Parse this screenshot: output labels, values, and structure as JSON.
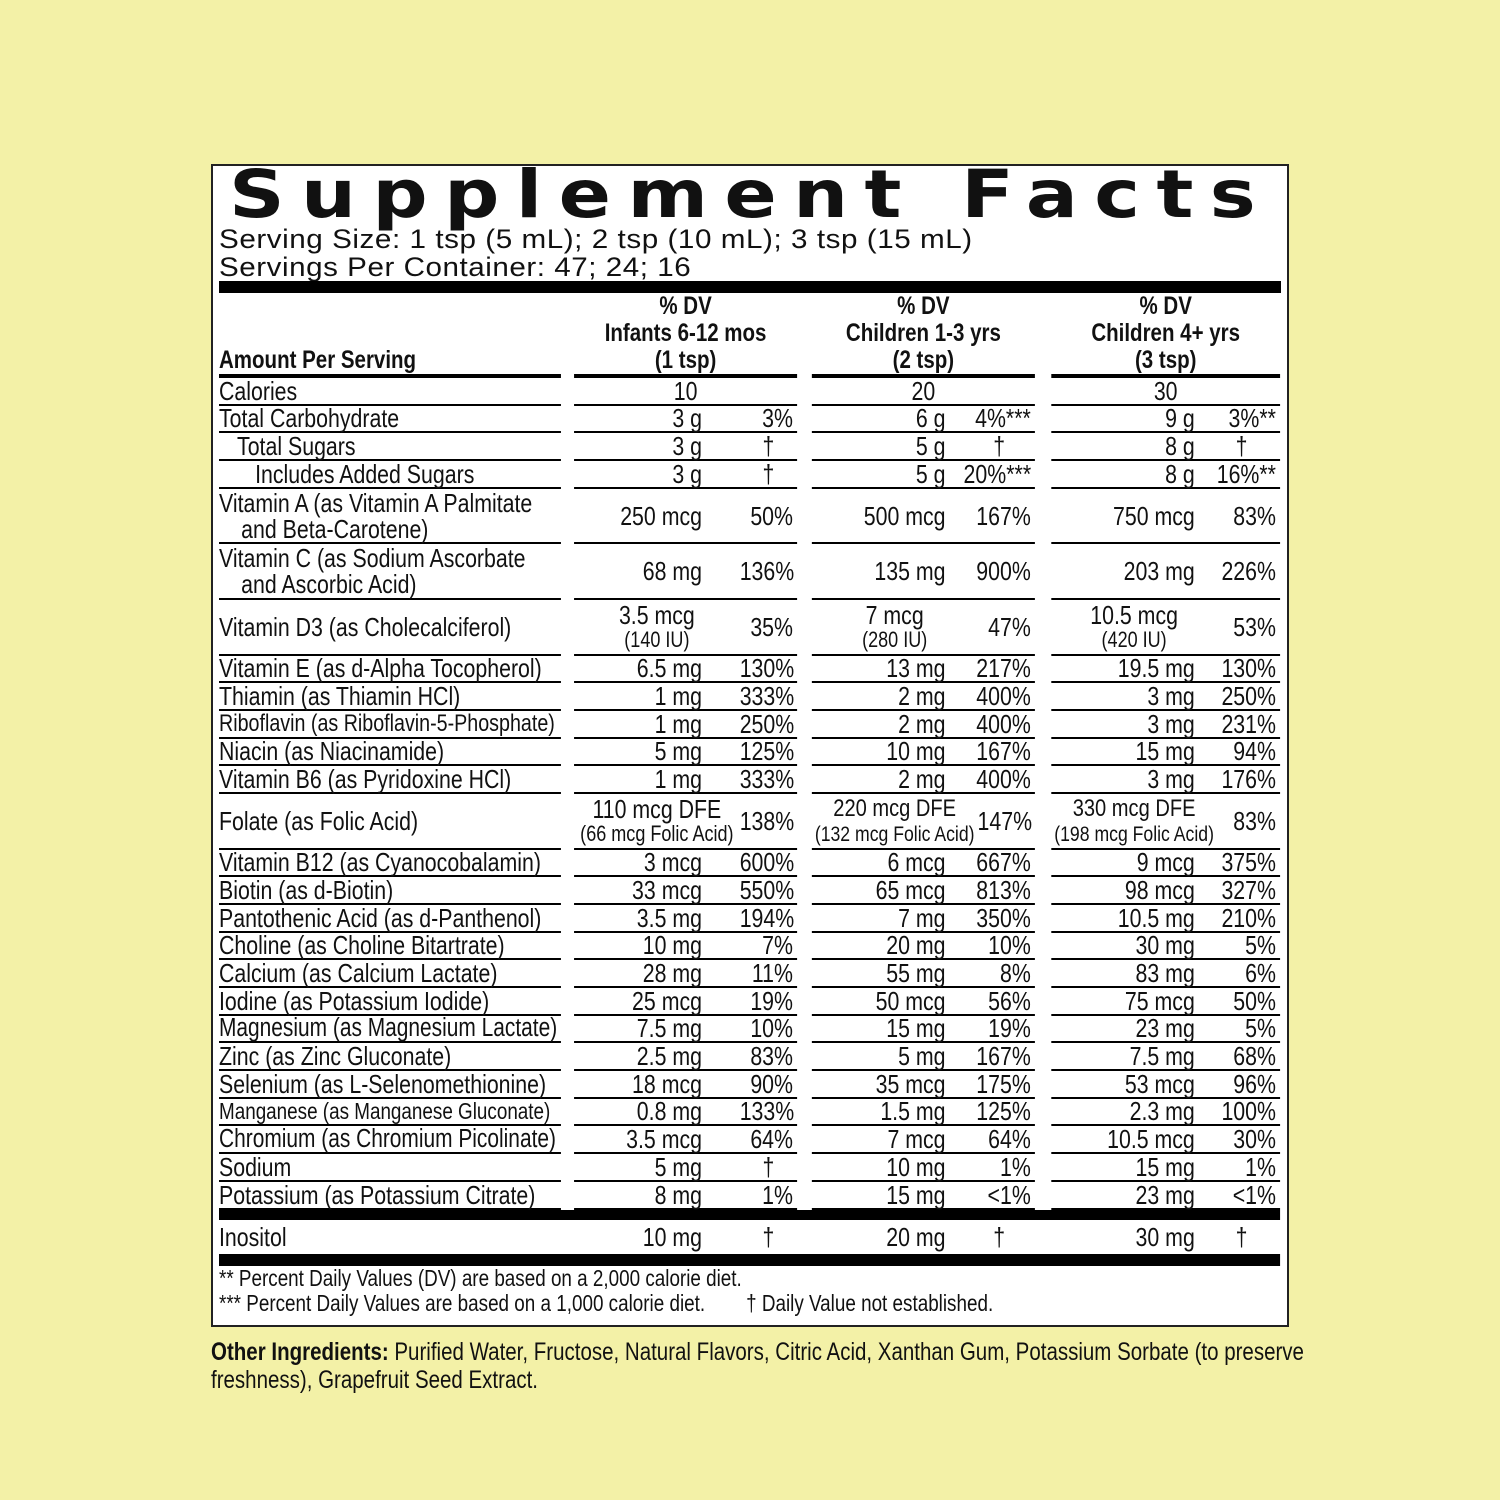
{
  "panel": {
    "title": "Supplement Facts",
    "serving_size": "Serving Size: 1 tsp (5 mL); 2 tsp (10 mL); 3 tsp (15 mL)",
    "servings_per_container": "Servings Per Container: 47; 24; 16"
  },
  "header": {
    "amount_per_serving": "Amount Per Serving",
    "columns": [
      {
        "dv": "% DV",
        "group": "Infants 6-12 mos",
        "serving": "(1  tsp)"
      },
      {
        "dv": "% DV",
        "group": "Children 1-3 yrs",
        "serving": "(2 tsp)"
      },
      {
        "dv": "% DV",
        "group": "Children 4+ yrs",
        "serving": "(3 tsp)"
      }
    ]
  },
  "rows": [
    {
      "label": "Calories",
      "indent": 0,
      "values": [
        {
          "amount": "10",
          "dv": ""
        },
        {
          "amount": "20",
          "dv": ""
        },
        {
          "amount": "30",
          "dv": ""
        }
      ]
    },
    {
      "label": "Total Carbohydrate",
      "indent": 0,
      "values": [
        {
          "amount": "3 g",
          "dv": "3%"
        },
        {
          "amount": "6 g",
          "dv": "4%***"
        },
        {
          "amount": "9 g",
          "dv": "3%**"
        }
      ]
    },
    {
      "label": "Total Sugars",
      "indent": 1,
      "values": [
        {
          "amount": "3 g",
          "dv": "†"
        },
        {
          "amount": "5 g",
          "dv": "†"
        },
        {
          "amount": "8 g",
          "dv": "†"
        }
      ]
    },
    {
      "label": "Includes Added Sugars",
      "indent": 2,
      "values": [
        {
          "amount": "3 g",
          "dv": "†"
        },
        {
          "amount": "5 g",
          "dv": "20%***"
        },
        {
          "amount": "8 g",
          "dv": "16%**"
        }
      ]
    },
    {
      "label": "Vitamin A (as Vitamin A Palmitate",
      "label_line2": "and Beta-Carotene)",
      "indent": 0,
      "values": [
        {
          "amount": "250 mcg",
          "dv": "50%"
        },
        {
          "amount": "500 mcg",
          "dv": "167%"
        },
        {
          "amount": "750 mcg",
          "dv": "83%"
        }
      ]
    },
    {
      "label": "Vitamin C (as Sodium Ascorbate",
      "label_line2": "and Ascorbic Acid)",
      "indent": 0,
      "values": [
        {
          "amount": "68 mg",
          "dv": "136%"
        },
        {
          "amount": "135 mg",
          "dv": "900%"
        },
        {
          "amount": "203 mg",
          "dv": "226%"
        }
      ]
    },
    {
      "label": "Vitamin D3  (as Cholecalciferol)",
      "indent": 0,
      "values": [
        {
          "amount": "3.5 mcg",
          "amount_line2": "(140 IU)",
          "dv": "35%"
        },
        {
          "amount": "7 mcg",
          "amount_line2": "(280 IU)",
          "dv": "47%"
        },
        {
          "amount": "10.5 mcg",
          "amount_line2": "(420 IU)",
          "dv": "53%"
        }
      ]
    },
    {
      "label": "Vitamin E (as d-Alpha Tocopherol)",
      "indent": 0,
      "values": [
        {
          "amount": "6.5 mg",
          "dv": "130%"
        },
        {
          "amount": "13 mg",
          "dv": "217%"
        },
        {
          "amount": "19.5 mg",
          "dv": "130%"
        }
      ]
    },
    {
      "label": "Thiamin (as Thiamin HCl)",
      "indent": 0,
      "values": [
        {
          "amount": "1 mg",
          "dv": "333%"
        },
        {
          "amount": "2 mg",
          "dv": "400%"
        },
        {
          "amount": "3 mg",
          "dv": "250%"
        }
      ]
    },
    {
      "label": "Riboflavin (as Riboflavin-5-Phosphate)",
      "indent": 0,
      "values": [
        {
          "amount": "1 mg",
          "dv": "250%"
        },
        {
          "amount": "2 mg",
          "dv": "400%"
        },
        {
          "amount": "3 mg",
          "dv": "231%"
        }
      ]
    },
    {
      "label": "Niacin (as Niacinamide)",
      "indent": 0,
      "values": [
        {
          "amount": "5 mg",
          "dv": "125%"
        },
        {
          "amount": "10 mg",
          "dv": "167%"
        },
        {
          "amount": "15 mg",
          "dv": "94%"
        }
      ]
    },
    {
      "label": "Vitamin B6 (as Pyridoxine HCl)",
      "indent": 0,
      "values": [
        {
          "amount": "1 mg",
          "dv": "333%"
        },
        {
          "amount": "2 mg",
          "dv": "400%"
        },
        {
          "amount": "3 mg",
          "dv": "176%"
        }
      ]
    },
    {
      "label": "Folate (as Folic Acid)",
      "indent": 0,
      "values": [
        {
          "amount": "110 mcg DFE",
          "amount_line2": "(66 mcg Folic Acid)",
          "dv": "138%"
        },
        {
          "amount": "220 mcg DFE",
          "amount_line2": "(132 mcg Folic Acid)",
          "dv": "147%"
        },
        {
          "amount": "330 mcg DFE",
          "amount_line2": "(198 mcg Folic Acid)",
          "dv": "83%"
        }
      ]
    },
    {
      "label": "Vitamin B12 (as Cyanocobalamin)",
      "indent": 0,
      "values": [
        {
          "amount": "3 mcg",
          "dv": "600%"
        },
        {
          "amount": "6 mcg",
          "dv": "667%"
        },
        {
          "amount": "9 mcg",
          "dv": "375%"
        }
      ]
    },
    {
      "label": "Biotin (as d-Biotin)",
      "indent": 0,
      "values": [
        {
          "amount": "33 mcg",
          "dv": "550%"
        },
        {
          "amount": "65 mcg",
          "dv": "813%"
        },
        {
          "amount": "98 mcg",
          "dv": "327%"
        }
      ]
    },
    {
      "label": "Pantothenic Acid (as d-Panthenol)",
      "indent": 0,
      "values": [
        {
          "amount": "3.5 mg",
          "dv": "194%"
        },
        {
          "amount": "7 mg",
          "dv": "350%"
        },
        {
          "amount": "10.5 mg",
          "dv": "210%"
        }
      ]
    },
    {
      "label": "Choline (as Choline Bitartrate)",
      "indent": 0,
      "values": [
        {
          "amount": "10 mg",
          "dv": "7%"
        },
        {
          "amount": "20 mg",
          "dv": "10%"
        },
        {
          "amount": "30 mg",
          "dv": "5%"
        }
      ]
    },
    {
      "label": "Calcium (as Calcium Lactate)",
      "indent": 0,
      "values": [
        {
          "amount": "28 mg",
          "dv": "11%"
        },
        {
          "amount": "55 mg",
          "dv": "8%"
        },
        {
          "amount": "83 mg",
          "dv": "6%"
        }
      ]
    },
    {
      "label": "Iodine (as Potassium Iodide)",
      "indent": 0,
      "values": [
        {
          "amount": "25 mcg",
          "dv": "19%"
        },
        {
          "amount": "50 mcg",
          "dv": "56%"
        },
        {
          "amount": "75 mcg",
          "dv": "50%"
        }
      ]
    },
    {
      "label": "Magnesium (as Magnesium Lactate)",
      "indent": 0,
      "values": [
        {
          "amount": "7.5 mg",
          "dv": "10%"
        },
        {
          "amount": "15 mg",
          "dv": "19%"
        },
        {
          "amount": "23 mg",
          "dv": "5%"
        }
      ]
    },
    {
      "label": "Zinc (as Zinc Gluconate)",
      "indent": 0,
      "values": [
        {
          "amount": "2.5 mg",
          "dv": "83%"
        },
        {
          "amount": "5 mg",
          "dv": "167%"
        },
        {
          "amount": "7.5 mg",
          "dv": "68%"
        }
      ]
    },
    {
      "label": "Selenium (as L-Selenomethionine)",
      "indent": 0,
      "values": [
        {
          "amount": "18 mcg",
          "dv": "90%"
        },
        {
          "amount": "35 mcg",
          "dv": "175%"
        },
        {
          "amount": "53 mcg",
          "dv": "96%"
        }
      ]
    },
    {
      "label": "Manganese (as Manganese Gluconate)",
      "indent": 0,
      "values": [
        {
          "amount": "0.8 mg",
          "dv": "133%"
        },
        {
          "amount": "1.5 mg",
          "dv": "125%"
        },
        {
          "amount": "2.3 mg",
          "dv": "100%"
        }
      ]
    },
    {
      "label": "Chromium (as Chromium Picolinate)",
      "indent": 0,
      "values": [
        {
          "amount": "3.5 mcg",
          "dv": "64%"
        },
        {
          "amount": "7 mcg",
          "dv": "64%"
        },
        {
          "amount": "10.5 mcg",
          "dv": "30%"
        }
      ]
    },
    {
      "label": "Sodium",
      "indent": 0,
      "values": [
        {
          "amount": "5 mg",
          "dv": "†"
        },
        {
          "amount": "10 mg",
          "dv": "1%"
        },
        {
          "amount": "15 mg",
          "dv": "1%"
        }
      ]
    },
    {
      "label": "Potassium (as Potassium Citrate)",
      "indent": 0,
      "values": [
        {
          "amount": "8 mg",
          "dv": "1%"
        },
        {
          "amount": "15 mg",
          "dv": "<1%"
        },
        {
          "amount": "23 mg",
          "dv": "<1%"
        }
      ]
    }
  ],
  "other_row": {
    "label": "Inositol",
    "values": [
      {
        "amount": "10 mg",
        "dv": "†"
      },
      {
        "amount": "20 mg",
        "dv": "†"
      },
      {
        "amount": "30 mg",
        "dv": "†"
      }
    ]
  },
  "footnotes": {
    "note_2000": "** Percent Daily Values (DV) are based on a 2,000 calorie diet.",
    "note_1000": "*** Percent Daily Values are based on a 1,000 calorie diet.",
    "note_dagger": "† Daily Value not established."
  },
  "other_ingredients": {
    "label": "Other Ingredients:",
    "text": " Purified Water, Fructose, Natural Flavors, Citric Acid, Xanthan Gum, Potassium Sorbate (to preserve freshness), Grapefruit Seed Extract."
  },
  "colors": {
    "background": "#f3f1a7",
    "panel": "#ffffff",
    "ink": "#111111"
  }
}
